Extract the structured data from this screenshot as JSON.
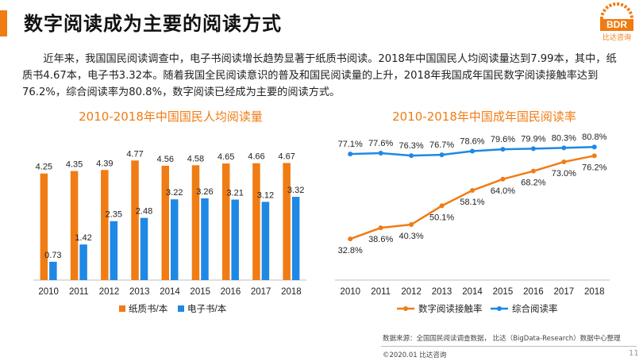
{
  "header": {
    "title": "数字阅读成为主要的阅读方式",
    "logo_text": "BDR",
    "logo_sub": "比达咨询"
  },
  "intro": "近年来，我国国民阅读调查中，电子书阅读增长趋势显著于纸质书阅读。2018年中国国民人均阅读量达到7.99本，其中，纸质书4.67本，电子书3.32本。随着我国全民阅读意识的普及和国民阅读量的上升，2018年我国成年国民数字阅读接触率达到76.2%，综合阅读率为80.8%，数字阅读已经成为主要的阅读方式。",
  "chart_data": [
    {
      "type": "bar",
      "title": "2010-2018年中国国民人均阅读量",
      "categories": [
        "2010",
        "2011",
        "2012",
        "2013",
        "2014",
        "2015",
        "2016",
        "2017",
        "2018"
      ],
      "series": [
        {
          "name": "纸质书/本",
          "color": "#f07c14",
          "values": [
            4.25,
            4.35,
            4.39,
            4.77,
            4.56,
            4.58,
            4.65,
            4.66,
            4.67
          ]
        },
        {
          "name": "电子书/本",
          "color": "#1e88e5",
          "values": [
            0.73,
            1.42,
            2.35,
            2.48,
            3.22,
            3.26,
            3.21,
            3.12,
            3.32
          ]
        }
      ],
      "value_labels": {
        "纸质书/本": [
          "4.25",
          "4.35",
          "4.39",
          "4.77",
          "4.56",
          "4.58",
          "4.65",
          "4.66",
          "4.67"
        ],
        "电子书/本": [
          "0.73",
          "1.42",
          "2.35",
          "2.48",
          "3.22",
          "3.26",
          "3.21",
          "3.12",
          "3.32"
        ]
      },
      "ylim": [
        0,
        5
      ],
      "grid": false,
      "legend": "bottom"
    },
    {
      "type": "line",
      "title": "2010-2018年中国成年国民阅读率",
      "categories": [
        "2010",
        "2011",
        "2012",
        "2013",
        "2014",
        "2015",
        "2016",
        "2017",
        "2018"
      ],
      "series": [
        {
          "name": "数字阅读接触率",
          "color": "#f07c14",
          "values": [
            32.8,
            38.6,
            40.3,
            50.1,
            58.1,
            64.0,
            68.2,
            73.0,
            76.2
          ],
          "labels": [
            "32.8%",
            "38.6%",
            "40.3%",
            "50.1%",
            "58.1%",
            "64.0%",
            "68.2%",
            "73.0%",
            "76.2%"
          ]
        },
        {
          "name": "综合阅读率",
          "color": "#1e88e5",
          "values": [
            77.1,
            77.6,
            76.3,
            76.7,
            78.6,
            79.6,
            79.9,
            80.3,
            80.8
          ],
          "labels": [
            "77.1%",
            "77.6%",
            "76.3%",
            "76.7%",
            "78.6%",
            "79.6%",
            "79.9%",
            "80.3%",
            "80.8%"
          ]
        }
      ],
      "ylim": [
        25,
        90
      ],
      "grid": false,
      "legend": "bottom"
    }
  ],
  "footer": {
    "source": "数据来源：全国国民阅读调查数据， 比达（BigData-Research）数据中心整理",
    "copyright": "©2020.01  比达咨询",
    "page": "11"
  }
}
